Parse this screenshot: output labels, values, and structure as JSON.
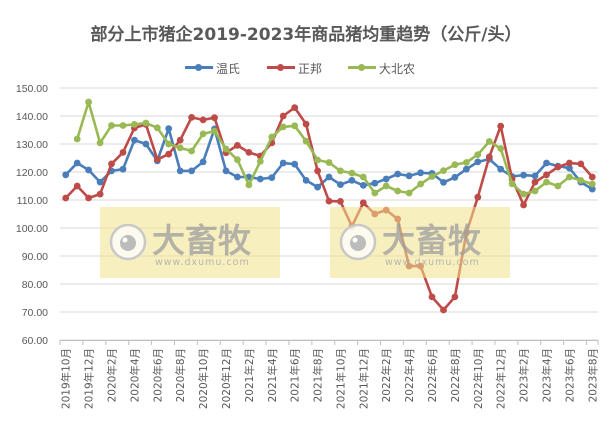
{
  "title": "部分上市猪企2019-2023年商品猪均重趋势（公斤/头）",
  "legend": [
    {
      "label": "温氏",
      "color": "#4A7EBB"
    },
    {
      "label": "正邦",
      "color": "#BE4B48"
    },
    {
      "label": "大北农",
      "color": "#98B954"
    }
  ],
  "watermark": {
    "brand": "大畜牧",
    "url": "www.dxumu.com"
  },
  "y_axis": {
    "ticks": [
      "150.00",
      "140.00",
      "130.00",
      "120.00",
      "110.00",
      "100.00",
      "90.00",
      "80.00",
      "70.00",
      "60.00"
    ]
  },
  "x_axis": {
    "tick_labels": [
      "2019年10月",
      "2019年12月",
      "2020年2月",
      "2020年4月",
      "2020年6月",
      "2020年8月",
      "2020年10月",
      "2020年12月",
      "2021年2月",
      "2021年4月",
      "2021年6月",
      "2021年8月",
      "2021年10月",
      "2021年12月",
      "2022年2月",
      "2022年4月",
      "2022年6月",
      "2022年8月",
      "2022年10月",
      "2022年12月",
      "2023年2月",
      "2023年4月",
      "2023年6月",
      "2023年8月"
    ]
  },
  "chart_data": {
    "type": "line",
    "title": "部分上市猪企2019-2023年商品猪均重趋势（公斤/头）",
    "xlabel": "",
    "ylabel": "公斤/头",
    "ylim": [
      60,
      150
    ],
    "grid": true,
    "legend_position": "top",
    "x": [
      "2019-10",
      "2019-11",
      "2019-12",
      "2020-01",
      "2020-02",
      "2020-03",
      "2020-04",
      "2020-05",
      "2020-06",
      "2020-07",
      "2020-08",
      "2020-09",
      "2020-10",
      "2020-11",
      "2020-12",
      "2021-01",
      "2021-02",
      "2021-03",
      "2021-04",
      "2021-05",
      "2021-06",
      "2021-07",
      "2021-08",
      "2021-09",
      "2021-10",
      "2021-11",
      "2021-12",
      "2022-01",
      "2022-02",
      "2022-03",
      "2022-04",
      "2022-05",
      "2022-06",
      "2022-07",
      "2022-08",
      "2022-09",
      "2022-10",
      "2022-11",
      "2022-12",
      "2023-01",
      "2023-02",
      "2023-03",
      "2023-04",
      "2023-05",
      "2023-06",
      "2023-07",
      "2023-08"
    ],
    "series": [
      {
        "name": "温氏",
        "color": "#4A7EBB",
        "values": [
          119.0,
          123.2,
          120.7,
          116.4,
          120.4,
          121.0,
          131.4,
          130.0,
          124.0,
          135.5,
          120.4,
          120.4,
          123.6,
          135.4,
          120.4,
          118.2,
          118.2,
          117.5,
          118.0,
          123.2,
          122.8,
          117.0,
          114.6,
          118.2,
          115.5,
          117.0,
          115.2,
          116.0,
          117.5,
          119.3,
          118.6,
          119.7,
          119.5,
          116.3,
          118.1,
          121.0,
          123.6,
          124.6,
          121.0,
          118.4,
          118.9,
          118.6,
          123.2,
          122.1,
          121.4,
          116.4,
          113.9
        ]
      },
      {
        "name": "正邦",
        "color": "#BE4B48",
        "values": [
          110.7,
          115.0,
          110.7,
          112.1,
          122.9,
          127.0,
          135.7,
          137.0,
          124.5,
          126.4,
          131.4,
          139.5,
          138.6,
          139.4,
          126.9,
          129.5,
          127.0,
          125.7,
          130.4,
          140.0,
          143.0,
          137.1,
          120.4,
          109.6,
          109.5,
          100.6,
          109.0,
          105.0,
          106.4,
          103.2,
          86.4,
          86.4,
          75.4,
          70.7,
          75.4,
          98.2,
          111.0,
          125.4,
          136.4,
          117.5,
          108.2,
          116.4,
          119.0,
          121.8,
          123.2,
          122.9,
          118.2
        ]
      },
      {
        "name": "大北农",
        "color": "#98B954",
        "values": [
          null,
          131.8,
          145.0,
          130.4,
          136.6,
          136.6,
          137.0,
          137.5,
          135.8,
          130.0,
          128.6,
          127.5,
          133.6,
          134.6,
          128.2,
          124.4,
          115.4,
          123.8,
          132.5,
          136.1,
          136.5,
          131.0,
          124.3,
          123.4,
          120.4,
          119.6,
          118.2,
          112.5,
          115.0,
          113.2,
          112.5,
          115.7,
          118.4,
          120.5,
          122.6,
          123.4,
          126.2,
          130.9,
          128.4,
          115.8,
          112.1,
          113.2,
          116.4,
          115.0,
          118.2,
          117.0,
          115.7
        ]
      }
    ]
  }
}
